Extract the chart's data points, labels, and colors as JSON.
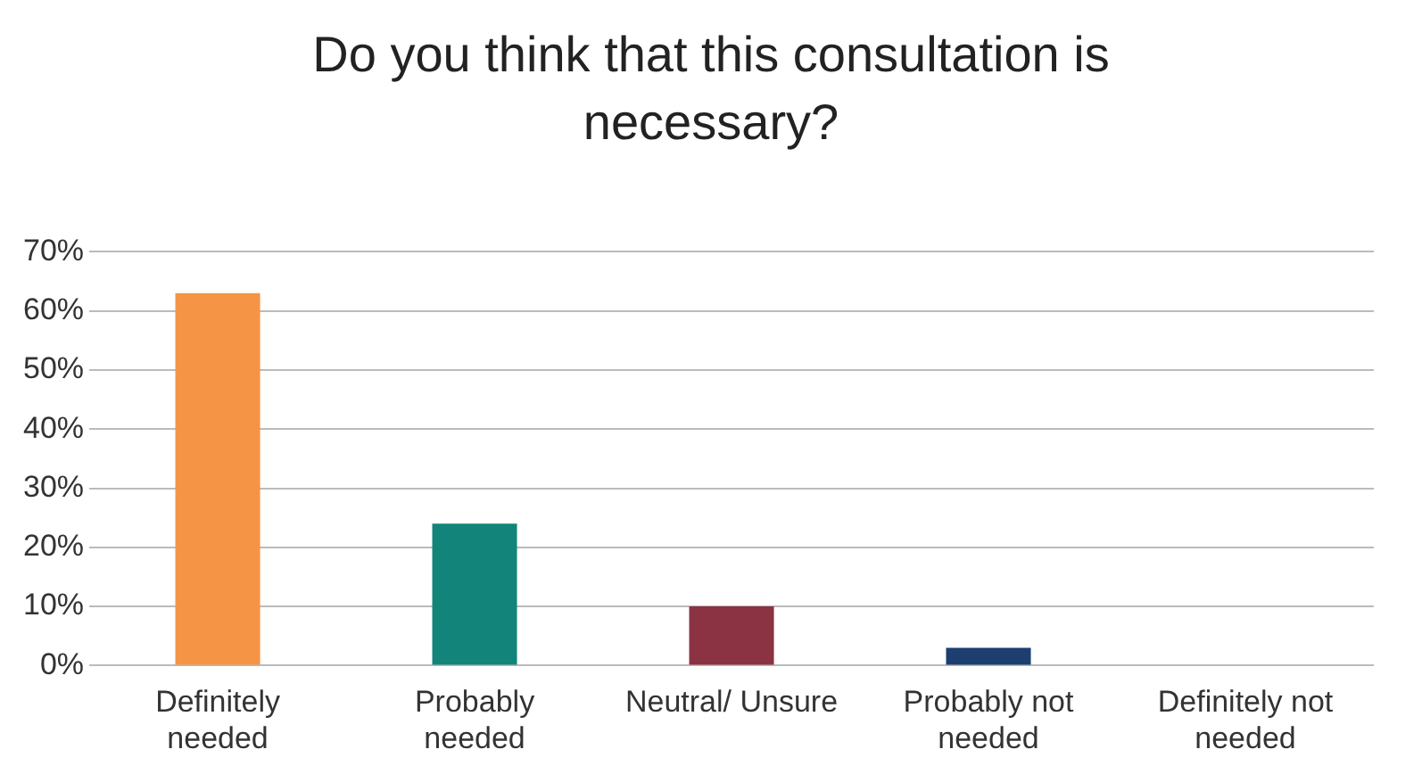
{
  "chart_data": {
    "type": "bar",
    "title": "Do you think that this consultation is necessary?",
    "categories": [
      "Definitely needed",
      "Probably needed",
      "Neutral/ Unsure",
      "Probably not needed",
      "Definitely not needed"
    ],
    "values": [
      63,
      24,
      10,
      3,
      0
    ],
    "colors": [
      "#f59445",
      "#13847a",
      "#8b3243",
      "#1d3f70",
      "#7f7f7f"
    ],
    "ylim": [
      0,
      70
    ],
    "yticks": [
      {
        "value": 0,
        "label": "0%"
      },
      {
        "value": 10,
        "label": "10%"
      },
      {
        "value": 20,
        "label": "20%"
      },
      {
        "value": 30,
        "label": "30%"
      },
      {
        "value": 40,
        "label": "40%"
      },
      {
        "value": 50,
        "label": "50%"
      },
      {
        "value": 60,
        "label": "60%"
      },
      {
        "value": 70,
        "label": "70%"
      }
    ],
    "grid": "y",
    "legend": false
  }
}
